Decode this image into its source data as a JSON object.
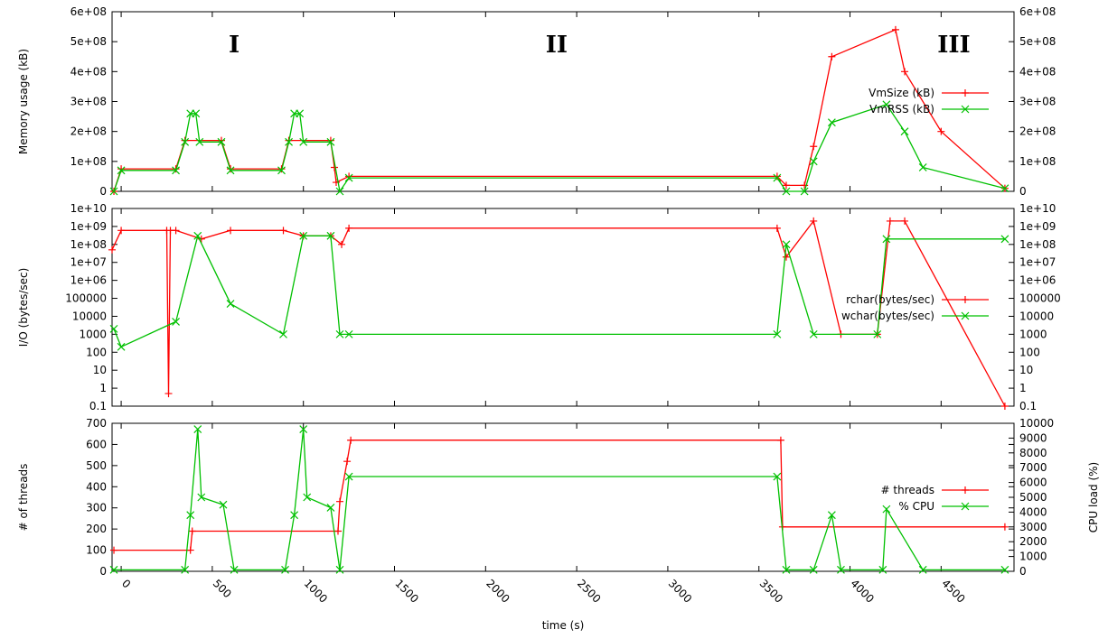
{
  "colors": {
    "red": "#ff0000",
    "green": "#00c000",
    "axis": "#000000"
  },
  "chart_data": [
    {
      "type": "line",
      "ylabel": "Memory usage (kB)",
      "ylim": [
        0,
        600000000
      ],
      "xlim": [
        -50,
        4900
      ],
      "y_ticks": [
        {
          "v": 0,
          "label": "0"
        },
        {
          "v": 100000000,
          "label": "1e+08"
        },
        {
          "v": 200000000,
          "label": "2e+08"
        },
        {
          "v": 300000000,
          "label": "3e+08"
        },
        {
          "v": 400000000,
          "label": "4e+08"
        },
        {
          "v": 500000000,
          "label": "5e+08"
        },
        {
          "v": 600000000,
          "label": "6e+08"
        }
      ],
      "phase_labels": [
        {
          "text": "I",
          "x": 620
        },
        {
          "text": "II",
          "x": 2390
        },
        {
          "text": "III",
          "x": 4570
        }
      ],
      "legend": "top-right",
      "series": [
        {
          "name": "VmSize (kB)",
          "color": "#ff0000",
          "marker": "plus",
          "points": [
            [
              -40,
              0
            ],
            [
              0,
              75000000
            ],
            [
              300,
              75000000
            ],
            [
              350,
              170000000
            ],
            [
              550,
              170000000
            ],
            [
              600,
              75000000
            ],
            [
              880,
              75000000
            ],
            [
              920,
              170000000
            ],
            [
              1150,
              170000000
            ],
            [
              1170,
              80000000
            ],
            [
              1180,
              30000000
            ],
            [
              1250,
              50000000
            ],
            [
              3600,
              50000000
            ],
            [
              3650,
              20000000
            ],
            [
              3750,
              20000000
            ],
            [
              3800,
              150000000
            ],
            [
              3900,
              450000000
            ],
            [
              4250,
              540000000
            ],
            [
              4300,
              400000000
            ],
            [
              4500,
              200000000
            ],
            [
              4850,
              10000000
            ]
          ]
        },
        {
          "name": "VmRSS (kB)",
          "color": "#00c000",
          "marker": "cross",
          "points": [
            [
              -40,
              0
            ],
            [
              0,
              70000000
            ],
            [
              300,
              70000000
            ],
            [
              350,
              165000000
            ],
            [
              380,
              260000000
            ],
            [
              410,
              260000000
            ],
            [
              430,
              165000000
            ],
            [
              550,
              165000000
            ],
            [
              600,
              70000000
            ],
            [
              880,
              70000000
            ],
            [
              920,
              165000000
            ],
            [
              950,
              260000000
            ],
            [
              980,
              260000000
            ],
            [
              1000,
              165000000
            ],
            [
              1150,
              165000000
            ],
            [
              1200,
              0
            ],
            [
              1250,
              45000000
            ],
            [
              3600,
              45000000
            ],
            [
              3650,
              0
            ],
            [
              3750,
              0
            ],
            [
              3800,
              100000000
            ],
            [
              3900,
              230000000
            ],
            [
              4200,
              290000000
            ],
            [
              4300,
              200000000
            ],
            [
              4400,
              80000000
            ],
            [
              4850,
              10000000
            ]
          ]
        }
      ]
    },
    {
      "type": "line",
      "ylabel": "I/O (bytes/sec)",
      "yscale": "log",
      "ylim": [
        0.1,
        10000000000
      ],
      "xlim": [
        -50,
        4900
      ],
      "y_ticks_left": [
        "0.1",
        "1",
        "10",
        "100",
        "1000",
        "10000",
        "100000",
        "1e+06",
        "1e+07",
        "1e+08",
        "1e+09",
        "1e+10"
      ],
      "y_ticks_right": [
        "0.1",
        "1",
        "10",
        "100",
        "1000",
        "10000",
        "100000",
        "1e+06",
        "1e+07",
        "1e+08",
        "1e+09",
        "1e+10"
      ],
      "legend": "right",
      "series": [
        {
          "name": "rchar(bytes/sec)",
          "color": "#ff0000",
          "marker": "plus",
          "points": [
            [
              -50,
              50000000
            ],
            [
              0,
              600000000
            ],
            [
              250,
              600000000
            ],
            [
              260,
              0.5
            ],
            [
              270,
              600000000
            ],
            [
              300,
              600000000
            ],
            [
              440,
              200000000
            ],
            [
              600,
              600000000
            ],
            [
              890,
              600000000
            ],
            [
              1000,
              300000000
            ],
            [
              1150,
              300000000
            ],
            [
              1210,
              100000000
            ],
            [
              1250,
              800000000
            ],
            [
              3600,
              800000000
            ],
            [
              3650,
              20000000
            ],
            [
              3800,
              2000000000
            ],
            [
              3950,
              1000
            ],
            [
              4150,
              1000
            ],
            [
              4220,
              2000000000
            ],
            [
              4300,
              2000000000
            ],
            [
              4850,
              0.1
            ]
          ]
        },
        {
          "name": "wchar(bytes/sec)",
          "color": "#00c000",
          "marker": "cross",
          "points": [
            [
              -40,
              2000
            ],
            [
              0,
              200
            ],
            [
              300,
              5000
            ],
            [
              420,
              300000000
            ],
            [
              600,
              50000
            ],
            [
              890,
              1000
            ],
            [
              1000,
              300000000
            ],
            [
              1150,
              300000000
            ],
            [
              1200,
              1000
            ],
            [
              1250,
              1000
            ],
            [
              3600,
              1000
            ],
            [
              3650,
              100000000
            ],
            [
              3800,
              1000
            ],
            [
              4150,
              1000
            ],
            [
              4200,
              200000000
            ],
            [
              4850,
              200000000
            ]
          ]
        }
      ]
    },
    {
      "type": "line",
      "ylabel": "# of threads",
      "ylabel_right": "CPU load (%)",
      "ylim": [
        0,
        700
      ],
      "ylim_right": [
        0,
        10000
      ],
      "xlim": [
        -50,
        4900
      ],
      "xlabel": "time (s)",
      "x_ticks": [
        "0",
        "500",
        "1000",
        "1500",
        "2000",
        "2500",
        "3000",
        "3500",
        "4000",
        "4500"
      ],
      "y_ticks_left": [
        "0",
        "100",
        "200",
        "300",
        "400",
        "500",
        "600",
        "700"
      ],
      "y_ticks_right": [
        "0",
        "1000",
        "2000",
        "3000",
        "4000",
        "5000",
        "6000",
        "7000",
        "8000",
        "9000",
        "10000"
      ],
      "legend": "right",
      "series": [
        {
          "name": "# threads",
          "color": "#ff0000",
          "marker": "plus",
          "axis": "left",
          "points": [
            [
              -40,
              100
            ],
            [
              380,
              100
            ],
            [
              390,
              190
            ],
            [
              1190,
              190
            ],
            [
              1200,
              330
            ],
            [
              1240,
              520
            ],
            [
              1260,
              620
            ],
            [
              3620,
              620
            ],
            [
              3630,
              210
            ],
            [
              4850,
              210
            ]
          ]
        },
        {
          "name": "% CPU",
          "color": "#00c000",
          "marker": "cross",
          "axis": "right",
          "points": [
            [
              -40,
              100
            ],
            [
              350,
              100
            ],
            [
              380,
              3800
            ],
            [
              420,
              9600
            ],
            [
              440,
              5000
            ],
            [
              560,
              4500
            ],
            [
              620,
              100
            ],
            [
              900,
              100
            ],
            [
              950,
              3800
            ],
            [
              1000,
              9600
            ],
            [
              1020,
              5000
            ],
            [
              1150,
              4300
            ],
            [
              1200,
              100
            ],
            [
              1250,
              6400
            ],
            [
              3600,
              6400
            ],
            [
              3650,
              100
            ],
            [
              3800,
              100
            ],
            [
              3900,
              3800
            ],
            [
              3950,
              100
            ],
            [
              4180,
              100
            ],
            [
              4200,
              4200
            ],
            [
              4400,
              100
            ],
            [
              4850,
              100
            ]
          ]
        }
      ]
    }
  ]
}
